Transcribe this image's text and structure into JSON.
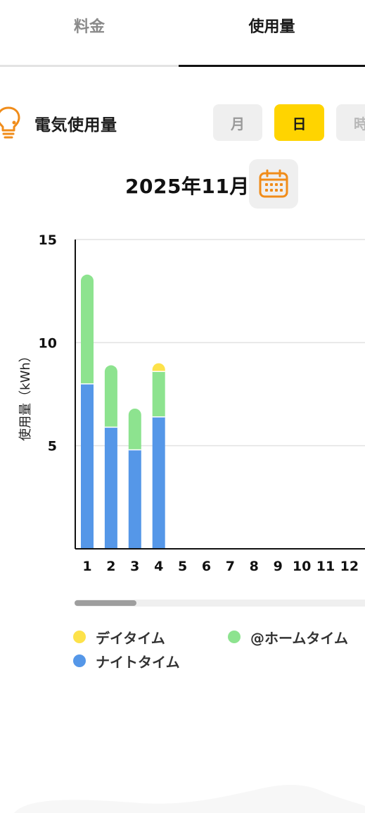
{
  "tabs": [
    {
      "label": "料金",
      "active": false
    },
    {
      "label": "使用量",
      "active": true
    }
  ],
  "section": {
    "icon": "lightbulb-icon",
    "title": "電気使用量"
  },
  "period_selector": {
    "month": "月",
    "day": "日",
    "hour": "時",
    "selected": "日"
  },
  "date": {
    "label": "2025年11月",
    "calendar_icon": "calendar-icon"
  },
  "colors": {
    "accent_yellow": "#ffd400",
    "day_time": "#fde24a",
    "home_time": "#8de38f",
    "night_time": "#5597e8",
    "calendar_orange": "#f08c1a"
  },
  "chart_data": {
    "type": "bar",
    "stacked": true,
    "ylabel": "使用量（kWh）",
    "xlabel": "",
    "ylim": [
      0,
      15
    ],
    "yticks": [
      5,
      10,
      15
    ],
    "grid": true,
    "categories": [
      "1",
      "2",
      "3",
      "4",
      "5",
      "6",
      "7",
      "8",
      "9",
      "10",
      "11",
      "12"
    ],
    "series": [
      {
        "name": "ナイトタイム",
        "color": "#5597e8",
        "values": [
          8.0,
          5.9,
          4.8,
          6.4,
          0,
          0,
          0,
          0,
          0,
          0,
          0,
          0
        ]
      },
      {
        "name": "@ホームタイム",
        "color": "#8de38f",
        "values": [
          5.3,
          3.0,
          2.0,
          2.2,
          0,
          0,
          0,
          0,
          0,
          0,
          0,
          0
        ]
      },
      {
        "name": "デイタイム",
        "color": "#fde24a",
        "values": [
          0,
          0,
          0,
          0.4,
          0,
          0,
          0,
          0,
          0,
          0,
          0,
          0
        ]
      }
    ]
  },
  "legend": [
    {
      "label": "デイタイム",
      "color": "#fde24a"
    },
    {
      "label": "@ホームタイム",
      "color": "#8de38f"
    },
    {
      "label": "ナイトタイム",
      "color": "#5597e8"
    }
  ]
}
